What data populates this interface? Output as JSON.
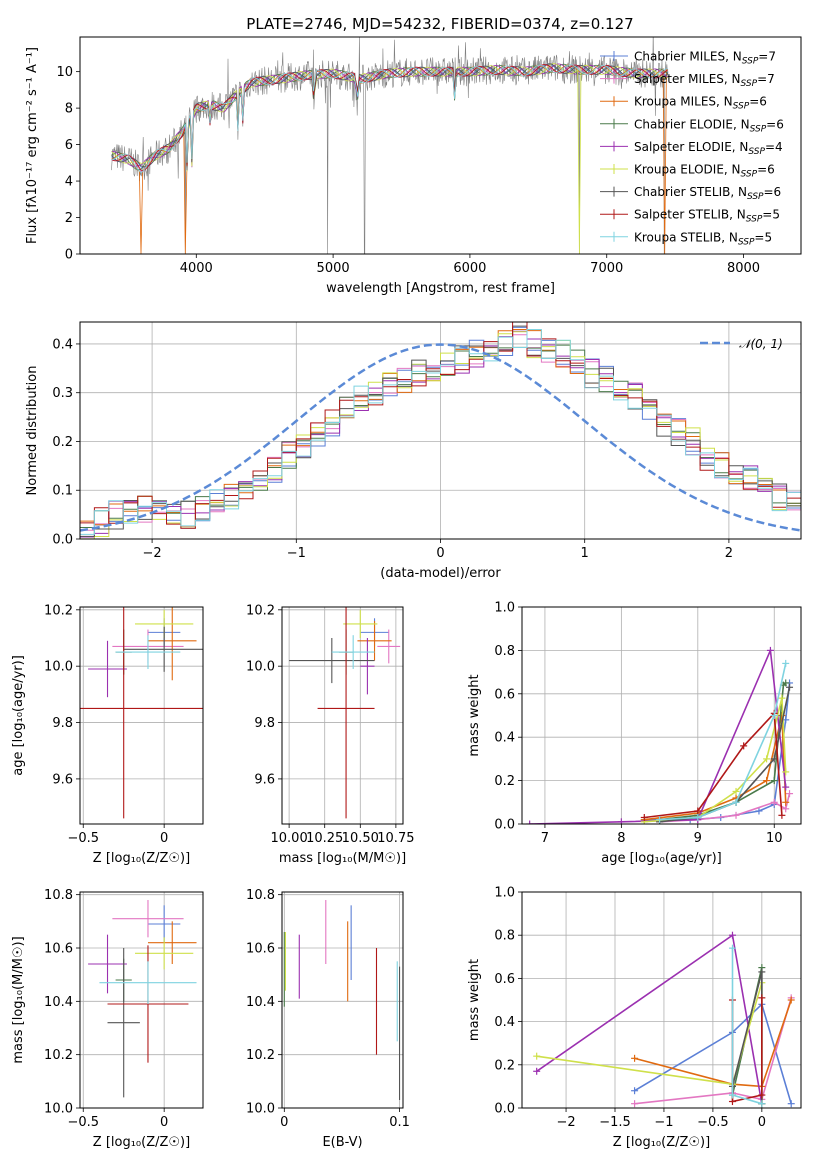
{
  "colors": {
    "Chabrier MILES": "#5b7fd6",
    "Salpeter MILES": "#e377c2",
    "Kroupa MILES": "#e06a10",
    "Chabrier ELODIE": "#4a7a4a",
    "Salpeter ELODIE": "#9b30b0",
    "Kroupa ELODIE": "#cfe04a",
    "Chabrier STELIB": "#555555",
    "Salpeter STELIB": "#b01818",
    "Kroupa STELIB": "#7fd3e0",
    "observed": "#808080",
    "normal": "#5b8ad6",
    "grid": "#b0b0b0"
  },
  "chart_data": [
    {
      "id": "spectrum",
      "type": "line",
      "title": "PLATE=2746, MJD=54232, FIBERID=0374, z=0.127",
      "xlabel": "wavelength [Angstrom, rest frame]",
      "ylabel": "Flux [fλ10⁻¹⁷ erg cm⁻² s⁻¹ A⁻¹]",
      "xlim": [
        3150,
        8420
      ],
      "ylim": [
        0,
        11.9
      ],
      "xticks": [
        4000,
        5000,
        6000,
        7000,
        8000
      ],
      "yticks": [
        0,
        2,
        4,
        6,
        8,
        10
      ],
      "grid": false,
      "legend_position": "top-right",
      "legend": [
        {
          "model": "Chabrier MILES",
          "nssp": 7
        },
        {
          "model": "Salpeter MILES",
          "nssp": 7
        },
        {
          "model": "Kroupa MILES",
          "nssp": 6
        },
        {
          "model": "Chabrier ELODIE",
          "nssp": 6
        },
        {
          "model": "Salpeter ELODIE",
          "nssp": 4
        },
        {
          "model": "Kroupa ELODIE",
          "nssp": 6
        },
        {
          "model": "Chabrier STELIB",
          "nssp": 6
        },
        {
          "model": "Salpeter STELIB",
          "nssp": 5
        },
        {
          "model": "Kroupa STELIB",
          "nssp": 5
        }
      ],
      "nssp_label": "N",
      "nssp_sub": "SSP",
      "continuum": {
        "x": [
          3380,
          3500,
          3600,
          3700,
          3800,
          3900,
          4000,
          4100,
          4200,
          4300,
          4400,
          4600,
          4800,
          5000,
          5200,
          5400,
          5600,
          5800,
          6000,
          6200,
          6400,
          6600,
          6800,
          7000,
          7200,
          7400
        ],
        "y": [
          5.4,
          5.2,
          4.7,
          5.4,
          5.8,
          6.7,
          8.0,
          8.2,
          8.0,
          8.8,
          9.4,
          9.6,
          9.8,
          9.9,
          9.6,
          9.9,
          10.0,
          10.0,
          10.0,
          10.1,
          10.0,
          10.2,
          10.1,
          10.1,
          9.9,
          9.9
        ]
      },
      "absorption_lines": [
        {
          "x": 3934,
          "y": 4.5
        },
        {
          "x": 3968,
          "y": 5.0
        },
        {
          "x": 4102,
          "y": 7.2
        },
        {
          "x": 4304,
          "y": 7.0
        },
        {
          "x": 4340,
          "y": 7.4
        },
        {
          "x": 4861,
          "y": 7.6
        },
        {
          "x": 5175,
          "y": 7.8
        },
        {
          "x": 5890,
          "y": 8.5
        }
      ],
      "spikes": [
        {
          "x": 3920,
          "y": 0.0
        },
        {
          "x": 4960,
          "y": 0.0
        },
        {
          "x": 5230,
          "y": 0.0
        },
        {
          "x": 6800,
          "y": 0.0
        },
        {
          "x": 7420,
          "y": 0.0
        }
      ],
      "model_cutoffs": [
        {
          "x": 3600,
          "model": "Kroupa MILES"
        },
        {
          "x": 3920,
          "model": "Kroupa MILES"
        },
        {
          "x": 6800,
          "model": "Kroupa ELODIE"
        },
        {
          "x": 7420,
          "model": "Kroupa MILES"
        }
      ]
    },
    {
      "id": "residuals",
      "type": "histogram",
      "xlabel": "(data-model)/error",
      "ylabel": "Normed distribution",
      "xlim": [
        -2.5,
        2.5
      ],
      "ylim": [
        0,
        0.445
      ],
      "xticks": [
        -2,
        -1,
        0,
        1,
        2
      ],
      "yticks": [
        0.0,
        0.1,
        0.2,
        0.3,
        0.4
      ],
      "grid": true,
      "legend_position": "top-right",
      "reference": {
        "name": "𝒩(0, 1)",
        "mean": 0,
        "sigma": 1
      },
      "bin_width": 0.1,
      "bin_start": -2.5,
      "base_shape": [
        0.03,
        0.035,
        0.05,
        0.055,
        0.06,
        0.055,
        0.06,
        0.05,
        0.065,
        0.075,
        0.09,
        0.11,
        0.12,
        0.14,
        0.17,
        0.19,
        0.22,
        0.24,
        0.27,
        0.29,
        0.3,
        0.32,
        0.33,
        0.34,
        0.35,
        0.36,
        0.37,
        0.38,
        0.39,
        0.4,
        0.42,
        0.4,
        0.39,
        0.38,
        0.36,
        0.34,
        0.33,
        0.31,
        0.29,
        0.27,
        0.24,
        0.22,
        0.2,
        0.17,
        0.15,
        0.13,
        0.12,
        0.1,
        0.085,
        0.075
      ]
    },
    {
      "id": "age-vs-Z",
      "type": "errorbar",
      "xlabel": "Z [log₁₀(Z/Z☉)]",
      "ylabel": "age  [log₁₀(age/yr)]",
      "xlim": [
        -0.52,
        0.24
      ],
      "ylim": [
        9.44,
        10.21
      ],
      "xticks": [
        -0.5,
        0.0
      ],
      "yticks": [
        9.6,
        9.8,
        10.0,
        10.2
      ],
      "grid": true,
      "points": [
        {
          "model": "Chabrier MILES",
          "x": 0.0,
          "xerr": 0.1,
          "y": 10.12,
          "yerr": 0.05
        },
        {
          "model": "Salpeter MILES",
          "x": -0.1,
          "xerr": 0.22,
          "y": 10.07,
          "yerr": 0.06
        },
        {
          "model": "Kroupa MILES",
          "x": 0.05,
          "xerr": 0.15,
          "y": 10.09,
          "yerr": 0.14
        },
        {
          "model": "Chabrier ELODIE",
          "x": -0.25,
          "xerr": 0.05,
          "y": 10.05,
          "yerr": 0.08
        },
        {
          "model": "Salpeter ELODIE",
          "x": -0.35,
          "xerr": 0.12,
          "y": 9.99,
          "yerr": 0.1
        },
        {
          "model": "Kroupa ELODIE",
          "x": 0.0,
          "xerr": 0.18,
          "y": 10.15,
          "yerr": 0.05
        },
        {
          "model": "Chabrier STELIB",
          "x": 0.0,
          "xerr": 0.25,
          "y": 10.06,
          "yerr": 0.08
        },
        {
          "model": "Salpeter STELIB",
          "x": -0.25,
          "xerr": 0.5,
          "y": 9.85,
          "yerr": 0.39
        },
        {
          "model": "Kroupa STELIB",
          "x": -0.1,
          "xerr": 0.2,
          "y": 10.05,
          "yerr": 0.06
        }
      ]
    },
    {
      "id": "age-vs-mass",
      "type": "errorbar",
      "xlabel": "mass [log₁₀(M/M☉)]",
      "ylabel": "",
      "xlim": [
        9.95,
        10.8
      ],
      "ylim": [
        9.44,
        10.21
      ],
      "xticks": [
        10.0,
        10.25,
        10.5,
        10.75
      ],
      "xtick_labels": [
        "10.00",
        "10.25",
        "10.50",
        "10.75"
      ],
      "yticks": [
        9.6,
        9.8,
        10.0,
        10.2
      ],
      "grid": true,
      "points": [
        {
          "model": "Chabrier MILES",
          "x": 10.6,
          "xerr": 0.1,
          "y": 10.12,
          "yerr": 0.05
        },
        {
          "model": "Salpeter MILES",
          "x": 10.7,
          "xerr": 0.08,
          "y": 10.07,
          "yerr": 0.06
        },
        {
          "model": "Kroupa MILES",
          "x": 10.6,
          "xerr": 0.12,
          "y": 10.09,
          "yerr": 0.07
        },
        {
          "model": "Chabrier ELODIE",
          "x": 10.4,
          "xerr": 0.05,
          "y": 10.05,
          "yerr": 0.08
        },
        {
          "model": "Salpeter ELODIE",
          "x": 10.55,
          "xerr": 0.05,
          "y": 10.0,
          "yerr": 0.1
        },
        {
          "model": "Kroupa ELODIE",
          "x": 10.5,
          "xerr": 0.12,
          "y": 10.15,
          "yerr": 0.05
        },
        {
          "model": "Chabrier STELIB",
          "x": 10.3,
          "xerr": 0.3,
          "y": 10.02,
          "yerr": 0.08
        },
        {
          "model": "Salpeter STELIB",
          "x": 10.4,
          "xerr": 0.2,
          "y": 9.85,
          "yerr": 0.39
        },
        {
          "model": "Kroupa STELIB",
          "x": 10.45,
          "xerr": 0.15,
          "y": 10.05,
          "yerr": 0.06
        }
      ]
    },
    {
      "id": "mass-vs-Z",
      "type": "errorbar",
      "xlabel": "Z [log₁₀(Z/Z☉)]",
      "ylabel": "mass [log₁₀(M/M☉)]",
      "xlim": [
        -0.52,
        0.24
      ],
      "ylim": [
        10.0,
        10.81
      ],
      "xticks": [
        -0.5,
        0.0
      ],
      "yticks": [
        10.0,
        10.2,
        10.4,
        10.6,
        10.8
      ],
      "grid": true,
      "points": [
        {
          "model": "Chabrier MILES",
          "x": 0.0,
          "xerr": 0.1,
          "y": 10.69,
          "yerr": 0.07
        },
        {
          "model": "Salpeter MILES",
          "x": -0.1,
          "xerr": 0.22,
          "y": 10.71,
          "yerr": 0.07
        },
        {
          "model": "Kroupa MILES",
          "x": 0.05,
          "xerr": 0.15,
          "y": 10.62,
          "yerr": 0.08
        },
        {
          "model": "Chabrier ELODIE",
          "x": -0.25,
          "xerr": 0.05,
          "y": 10.48,
          "yerr": 0.08
        },
        {
          "model": "Salpeter ELODIE",
          "x": -0.35,
          "xerr": 0.12,
          "y": 10.54,
          "yerr": 0.11
        },
        {
          "model": "Kroupa ELODIE",
          "x": 0.0,
          "xerr": 0.18,
          "y": 10.58,
          "yerr": 0.06
        },
        {
          "model": "Chabrier STELIB",
          "x": -0.25,
          "xerr": 0.1,
          "y": 10.32,
          "yerr": 0.28
        },
        {
          "model": "Salpeter STELIB",
          "x": -0.1,
          "xerr": 0.25,
          "y": 10.39,
          "yerr": 0.22
        },
        {
          "model": "Kroupa STELIB",
          "x": -0.1,
          "xerr": 0.3,
          "y": 10.47,
          "yerr": 0.08
        }
      ]
    },
    {
      "id": "mass-vs-EBV",
      "type": "errorbar",
      "xlabel": "E(B-V)",
      "ylabel": "",
      "xlim": [
        -0.002,
        0.103
      ],
      "ylim": [
        10.0,
        10.81
      ],
      "xticks": [
        0.0,
        0.1
      ],
      "yticks": [
        10.0,
        10.2,
        10.4,
        10.6,
        10.8
      ],
      "grid": true,
      "points": [
        {
          "model": "Chabrier MILES",
          "x": 0.058,
          "xerr": 0,
          "y": 10.62,
          "yerr": 0.14
        },
        {
          "model": "Salpeter MILES",
          "x": 0.036,
          "xerr": 0,
          "y": 10.66,
          "yerr": 0.12
        },
        {
          "model": "Kroupa MILES",
          "x": 0.055,
          "xerr": 0,
          "y": 10.55,
          "yerr": 0.15
        },
        {
          "model": "Chabrier ELODIE",
          "x": 0.0,
          "xerr": 0,
          "y": 10.52,
          "yerr": 0.14
        },
        {
          "model": "Salpeter ELODIE",
          "x": 0.013,
          "xerr": 0,
          "y": 10.53,
          "yerr": 0.12
        },
        {
          "model": "Kroupa ELODIE",
          "x": 0.001,
          "xerr": 0,
          "y": 10.55,
          "yerr": 0.11
        },
        {
          "model": "Chabrier STELIB",
          "x": 0.1,
          "xerr": 0,
          "y": 10.28,
          "yerr": 0.25
        },
        {
          "model": "Salpeter STELIB",
          "x": 0.08,
          "xerr": 0,
          "y": 10.4,
          "yerr": 0.2
        },
        {
          "model": "Kroupa STELIB",
          "x": 0.098,
          "xerr": 0,
          "y": 10.4,
          "yerr": 0.15
        }
      ]
    },
    {
      "id": "mass-weight-vs-age",
      "type": "line",
      "xlabel": "age  [log₁₀(age/yr)]",
      "ylabel": "mass weight",
      "xlim": [
        6.7,
        10.35
      ],
      "ylim": [
        0,
        1.0
      ],
      "xticks": [
        7,
        8,
        9,
        10
      ],
      "yticks": [
        0.0,
        0.2,
        0.4,
        0.6,
        0.8,
        1.0
      ],
      "grid": true,
      "series": [
        {
          "model": "Chabrier MILES",
          "x": [
            8.3,
            8.9,
            9.3,
            9.8,
            10.0,
            10.15,
            10.2
          ],
          "y": [
            0.02,
            0.02,
            0.03,
            0.06,
            0.09,
            0.48,
            0.65
          ]
        },
        {
          "model": "Salpeter MILES",
          "x": [
            8.5,
            9.0,
            9.5,
            10.0,
            10.15,
            10.2
          ],
          "y": [
            0.01,
            0.02,
            0.04,
            0.1,
            0.07,
            0.14
          ]
        },
        {
          "model": "Kroupa MILES",
          "x": [
            8.3,
            9.0,
            9.5,
            9.9,
            10.1,
            10.15
          ],
          "y": [
            0.02,
            0.05,
            0.12,
            0.2,
            0.5,
            0.1
          ]
        },
        {
          "model": "Chabrier ELODIE",
          "x": [
            8.5,
            9.0,
            9.5,
            10.0,
            10.12,
            10.15
          ],
          "y": [
            0.02,
            0.04,
            0.1,
            0.2,
            0.64,
            0.65
          ]
        },
        {
          "model": "Salpeter ELODIE",
          "x": [
            6.8,
            8.0,
            9.0,
            9.95,
            10.15
          ],
          "y": [
            0.0,
            0.01,
            0.02,
            0.8,
            0.17
          ]
        },
        {
          "model": "Kroupa ELODIE",
          "x": [
            8.3,
            9.0,
            9.5,
            9.9,
            10.1,
            10.15
          ],
          "y": [
            0.01,
            0.03,
            0.15,
            0.3,
            0.58,
            0.24
          ]
        },
        {
          "model": "Chabrier STELIB",
          "x": [
            8.5,
            9.0,
            9.5,
            10.0,
            10.2
          ],
          "y": [
            0.01,
            0.03,
            0.1,
            0.3,
            0.63
          ]
        },
        {
          "model": "Salpeter STELIB",
          "x": [
            8.3,
            9.0,
            9.6,
            10.0,
            10.1
          ],
          "y": [
            0.03,
            0.06,
            0.36,
            0.51,
            0.04
          ]
        },
        {
          "model": "Kroupa STELIB",
          "x": [
            8.5,
            9.0,
            9.5,
            10.0,
            10.15
          ],
          "y": [
            0.02,
            0.03,
            0.1,
            0.5,
            0.74
          ]
        }
      ]
    },
    {
      "id": "mass-weight-vs-Z",
      "type": "line",
      "xlabel": "Z [log₁₀(Z/Z☉)]",
      "ylabel": "mass weight",
      "xlim": [
        -2.45,
        0.4
      ],
      "ylim": [
        0,
        1.0
      ],
      "xticks": [
        -2.0,
        -1.5,
        -1.0,
        -0.5,
        0.0
      ],
      "yticks": [
        0.0,
        0.2,
        0.4,
        0.6,
        0.8,
        1.0
      ],
      "grid": true,
      "series": [
        {
          "model": "Chabrier MILES",
          "x": [
            -1.3,
            -0.3,
            0.0,
            0.3
          ],
          "y": [
            0.08,
            0.35,
            0.48,
            0.02
          ]
        },
        {
          "model": "Salpeter MILES",
          "x": [
            -1.3,
            -0.3,
            0.0,
            0.3
          ],
          "y": [
            0.02,
            0.07,
            0.04,
            0.51
          ]
        },
        {
          "model": "Kroupa MILES",
          "x": [
            -1.3,
            -0.3,
            0.0,
            0.3
          ],
          "y": [
            0.23,
            0.11,
            0.1,
            0.5
          ]
        },
        {
          "model": "Chabrier ELODIE",
          "x": [
            -0.3,
            0.0,
            0.0
          ],
          "y": [
            0.06,
            0.65,
            0.02
          ]
        },
        {
          "model": "Salpeter ELODIE",
          "x": [
            -2.3,
            -0.3,
            0.0
          ],
          "y": [
            0.17,
            0.8,
            0.02
          ]
        },
        {
          "model": "Kroupa ELODIE",
          "x": [
            -2.3,
            -0.3,
            0.0,
            0.0
          ],
          "y": [
            0.24,
            0.11,
            0.58,
            0.02
          ]
        },
        {
          "model": "Chabrier STELIB",
          "x": [
            -0.3,
            0.0,
            0.0
          ],
          "y": [
            0.1,
            0.63,
            0.02
          ]
        },
        {
          "model": "Salpeter STELIB",
          "x": [
            -0.3,
            -0.3,
            0.0,
            0.0
          ],
          "y": [
            0.5,
            0.03,
            0.06,
            0.51
          ]
        },
        {
          "model": "Kroupa STELIB",
          "x": [
            -0.3,
            -0.3,
            0.0
          ],
          "y": [
            0.74,
            0.06,
            0.02
          ]
        }
      ]
    }
  ]
}
